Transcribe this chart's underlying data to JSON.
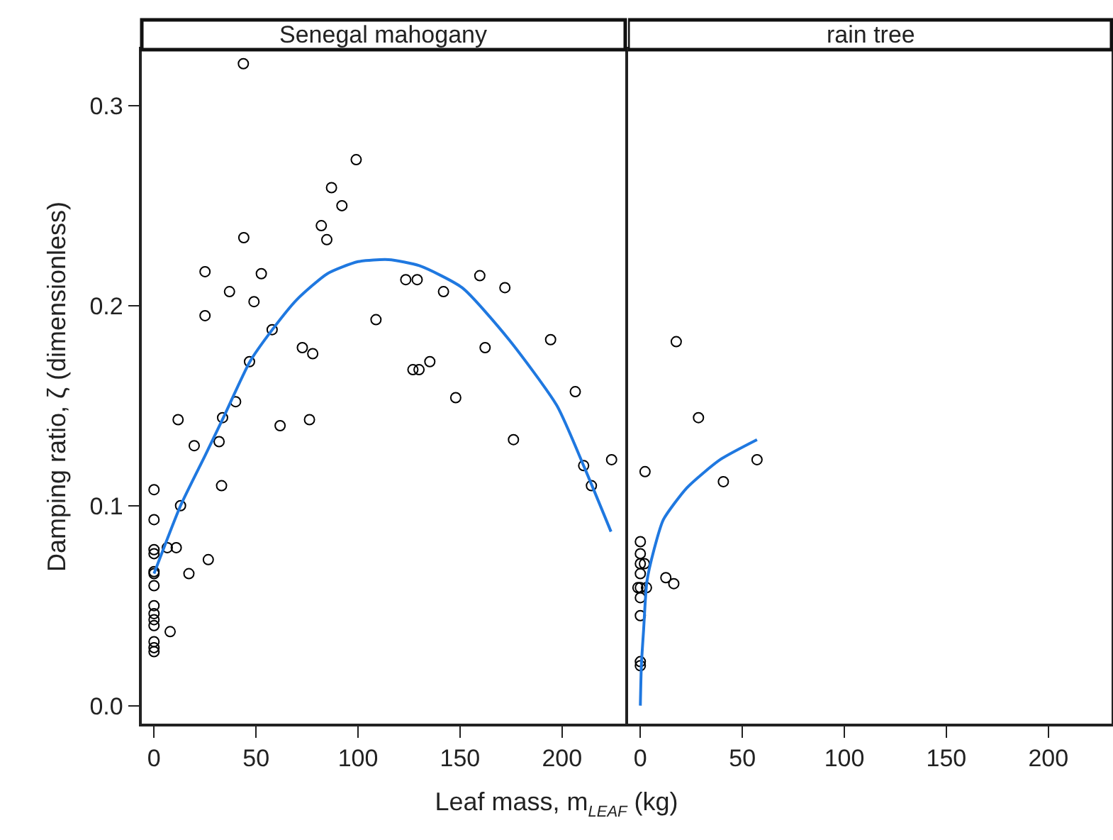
{
  "chart_data": [
    {
      "type": "scatter",
      "title": "Senegal mahogany",
      "xlabel": "Leaf mass, m$_{LEAF}$ (kg)",
      "ylabel": "Damping ratio, ζ (dimensionless)",
      "marker": "circle",
      "grid": false,
      "xlim": [
        -6,
        231
      ],
      "xticks": [
        0,
        50,
        100,
        150,
        200
      ],
      "ylim": [
        -0.009,
        0.328
      ],
      "yticks": [
        {
          "value": 0,
          "label": "0.0"
        },
        0.1,
        0.2,
        0.3
      ],
      "series": [
        {
          "color": "#000000",
          "x": [
            43.8,
            99.1,
            87,
            92.1,
            82,
            84.7,
            44,
            25,
            52.6,
            37,
            49,
            25,
            108.8,
            57.9,
            72.7,
            77.8,
            46.8,
            40,
            11.8,
            33.6,
            61.8,
            76.2,
            19.7,
            31.9,
            0,
            33.1,
            13,
            0,
            0,
            0,
            6.5,
            10.9,
            26.6,
            0,
            0,
            17.1,
            0,
            0,
            0,
            0,
            0,
            7.9,
            0,
            0,
            0,
            123.4,
            129,
            159.7,
            141.9,
            172,
            194.4,
            162.3,
            126.9,
            129.9,
            135.2,
            206.5,
            147.9,
            176.2,
            224.3,
            210.6,
            214.4
          ],
          "values": [
            0.321,
            0.273,
            0.259,
            0.25,
            0.24,
            0.233,
            0.234,
            0.217,
            0.216,
            0.207,
            0.202,
            0.195,
            0.193,
            0.188,
            0.179,
            0.176,
            0.172,
            0.152,
            0.143,
            0.144,
            0.14,
            0.143,
            0.13,
            0.132,
            0.108,
            0.11,
            0.1,
            0.093,
            0.078,
            0.076,
            0.079,
            0.079,
            0.073,
            0.067,
            0.066,
            0.066,
            0.06,
            0.05,
            0.046,
            0.043,
            0.04,
            0.037,
            0.032,
            0.029,
            0.027,
            0.213,
            0.213,
            0.215,
            0.207,
            0.209,
            0.183,
            0.179,
            0.168,
            0.168,
            0.172,
            0.157,
            0.154,
            0.133,
            0.123,
            0.12,
            0.11
          ]
        },
        {
          "type": "line",
          "color": "#1f78e0",
          "marker": "none",
          "line_style": "solid",
          "x": [
            0,
            13,
            25,
            34,
            47,
            58,
            70,
            85,
            100,
            115,
            130,
            151,
            174,
            197.5,
            211,
            224
          ],
          "values": [
            0.066,
            0.1,
            0.125,
            0.144,
            0.172,
            0.188,
            0.203,
            0.216,
            0.222,
            0.223,
            0.22,
            0.209,
            0.183,
            0.15,
            0.119,
            0.087
          ]
        }
      ]
    },
    {
      "type": "scatter",
      "title": "rain tree",
      "marker": "circle",
      "grid": false,
      "tick_labels": "x",
      "xlim": [
        -6,
        231
      ],
      "xticks": [
        0,
        50,
        100,
        150,
        200
      ],
      "ylim": [
        -0.009,
        0.328
      ],
      "series": [
        {
          "color": "#000000",
          "x": [
            17.6,
            28.5,
            57.2,
            2.3,
            40.7,
            0,
            0,
            0,
            2,
            0,
            -1.2,
            0,
            3,
            0,
            12.5,
            16.4,
            0,
            0,
            0
          ],
          "values": [
            0.182,
            0.144,
            0.123,
            0.117,
            0.112,
            0.082,
            0.076,
            0.071,
            0.071,
            0.066,
            0.059,
            0.059,
            0.059,
            0.054,
            0.064,
            0.061,
            0.045,
            0.022,
            0.02
          ]
        },
        {
          "type": "line",
          "color": "#1f78e0",
          "marker": "none",
          "line_style": "solid",
          "x": [
            0,
            0.5,
            1.6,
            3.2,
            6.7,
            11.3,
            22.9,
            39.1,
            57.2
          ],
          "values": [
            0,
            0.02,
            0.038,
            0.062,
            0.078,
            0.093,
            0.109,
            0.123,
            0.133
          ]
        }
      ]
    }
  ]
}
